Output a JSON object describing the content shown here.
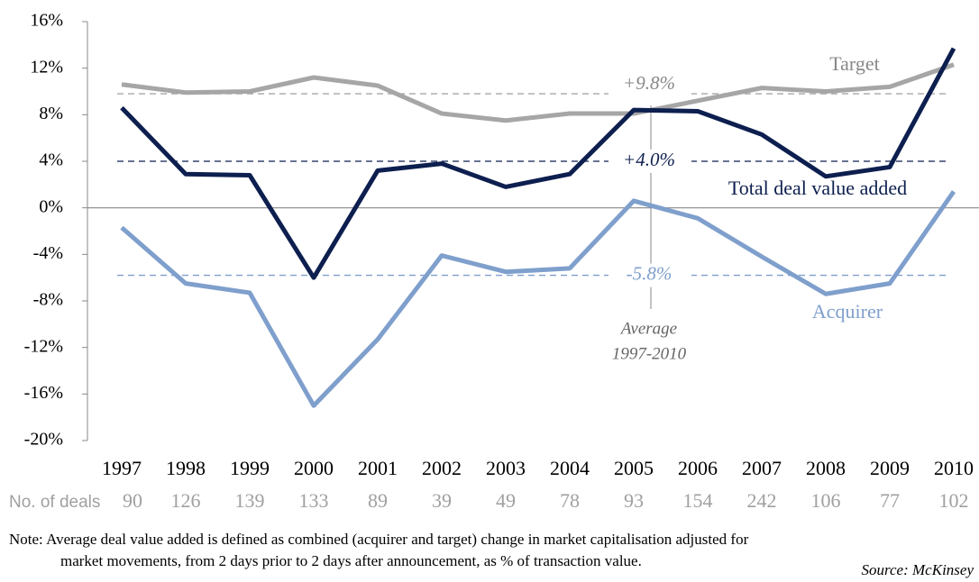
{
  "chart_data": {
    "type": "line",
    "categories": [
      "1997",
      "1998",
      "1999",
      "2000",
      "2001",
      "2002",
      "2003",
      "2004",
      "2005",
      "2006",
      "2007",
      "2008",
      "2009",
      "2010"
    ],
    "series": [
      {
        "name": "Target",
        "color": "#a6a6a6",
        "values": [
          10.6,
          9.9,
          10.0,
          11.2,
          10.5,
          8.1,
          7.5,
          8.1,
          8.1,
          9.2,
          10.3,
          10.0,
          10.4,
          12.3
        ]
      },
      {
        "name": "Total deal value added",
        "color": "#0d1f4f",
        "values": [
          8.6,
          2.9,
          2.8,
          -6.0,
          3.2,
          3.8,
          1.8,
          2.9,
          8.4,
          8.3,
          6.3,
          2.7,
          3.5,
          13.7
        ]
      },
      {
        "name": "Acquirer",
        "color": "#7f9fcc",
        "values": [
          -1.7,
          -6.5,
          -7.3,
          -17.0,
          -11.3,
          -4.1,
          -5.5,
          -5.2,
          0.6,
          -0.9,
          -4.2,
          -7.4,
          -6.5,
          1.4
        ]
      }
    ],
    "averages": [
      {
        "value": 9.8,
        "label": "+9.8%"
      },
      {
        "value": 4.0,
        "label": "+4.0%"
      },
      {
        "value": -5.8,
        "label": "-5.8%"
      }
    ],
    "annotation": [
      "Average",
      "1997-2010"
    ],
    "ylim": [
      -20,
      16
    ],
    "yticks": [
      {
        "value": -20,
        "label": "-20%"
      },
      {
        "value": -16,
        "label": "-16%"
      },
      {
        "value": -12,
        "label": "-12%"
      },
      {
        "value": -8,
        "label": "-8%"
      },
      {
        "value": -4,
        "label": "-4%"
      },
      {
        "value": 0,
        "label": "0%"
      },
      {
        "value": 4,
        "label": "4%"
      },
      {
        "value": 8,
        "label": "8%"
      },
      {
        "value": 12,
        "label": "12%"
      },
      {
        "value": 16,
        "label": "16%"
      }
    ],
    "deals": {
      "label": "No. of deals",
      "values": [
        90,
        126,
        139,
        133,
        89,
        39,
        49,
        78,
        93,
        154,
        242,
        106,
        77,
        102
      ]
    },
    "note": [
      "Note:  Average deal value added is defined as combined (acquirer and target) change in market capitalisation adjusted for",
      "market movements, from 2 days prior to 2 days after announcement, as % of transaction value."
    ],
    "source": "Source: McKinsey"
  }
}
